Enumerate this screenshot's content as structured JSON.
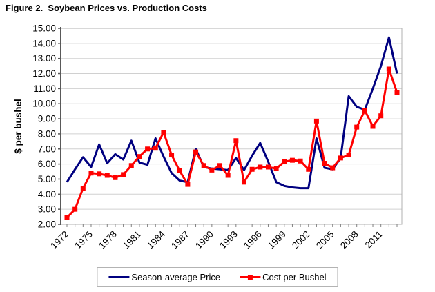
{
  "title": "Figure 2.  Soybean Prices vs. Production Costs",
  "chart_data": {
    "type": "line",
    "title": "Figure 2. Soybean Prices vs. Production Costs",
    "xlabel": "",
    "ylabel": "$ per bushel",
    "ylim": [
      2,
      15
    ],
    "ytick_step": 1,
    "ytick_labels": [
      "15.00",
      "14.00",
      "13.00",
      "12.00",
      "11.00",
      "10.00",
      "9.00",
      "8.00",
      "7.00",
      "6.00",
      "5.00",
      "4.00",
      "3.00",
      "2.00"
    ],
    "x": [
      1972,
      1973,
      1974,
      1975,
      1976,
      1977,
      1978,
      1979,
      1980,
      1981,
      1982,
      1983,
      1984,
      1985,
      1986,
      1987,
      1988,
      1989,
      1990,
      1991,
      1992,
      1993,
      1994,
      1995,
      1996,
      1997,
      1998,
      1999,
      2000,
      2001,
      2002,
      2003,
      2004,
      2005,
      2006,
      2007,
      2008,
      2009,
      2010,
      2011,
      2012,
      2013
    ],
    "xtick_labels": [
      "1972",
      "1975",
      "1978",
      "1981",
      "1984",
      "1987",
      "1990",
      "1993",
      "1996",
      "1999",
      "2002",
      "2005",
      "2008",
      "2011"
    ],
    "grid": "horizontal",
    "legend_position": "bottom-center",
    "series": [
      {
        "name": "Season-average Price",
        "color": "#000080",
        "marker": "none",
        "values": [
          4.8,
          5.65,
          6.45,
          5.8,
          7.3,
          6.05,
          6.65,
          6.3,
          7.55,
          6.1,
          5.95,
          7.7,
          6.5,
          5.4,
          4.9,
          4.8,
          7.0,
          5.8,
          5.7,
          5.65,
          5.6,
          6.4,
          5.6,
          6.55,
          7.4,
          6.15,
          4.8,
          4.55,
          4.45,
          4.4,
          4.4,
          7.7,
          5.75,
          5.65,
          6.4,
          10.5,
          9.8,
          9.6,
          11.0,
          12.5,
          14.4,
          12.0
        ]
      },
      {
        "name": "Cost per Bushel",
        "color": "#FF0000",
        "marker": "square",
        "values": [
          2.45,
          3.0,
          4.4,
          5.4,
          5.35,
          5.25,
          5.1,
          5.3,
          5.9,
          6.5,
          7.0,
          7.05,
          8.1,
          6.6,
          5.55,
          4.65,
          6.8,
          5.9,
          5.6,
          5.9,
          5.25,
          7.55,
          4.8,
          5.65,
          5.8,
          5.8,
          5.7,
          6.15,
          6.25,
          6.2,
          5.65,
          8.85,
          6.05,
          5.75,
          6.4,
          6.6,
          8.45,
          9.55,
          8.5,
          9.2,
          12.3,
          10.75
        ]
      }
    ],
    "colors": {
      "gridline": "#d0d0d0",
      "frame": "#b0b0b0",
      "axis": "#595959",
      "tick": "#808080",
      "text": "#000000"
    }
  }
}
